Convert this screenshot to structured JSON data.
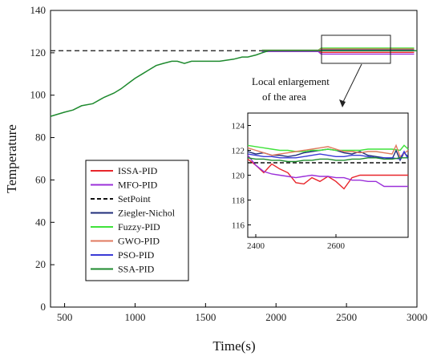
{
  "chart_data": {
    "type": "line",
    "xlabel": "Time(s)",
    "ylabel": "Temperature",
    "xlim": [
      400,
      3000
    ],
    "ylim": [
      0,
      140
    ],
    "x_ticks": [
      "500",
      "1000",
      "1500",
      "2000",
      "2500",
      "3000"
    ],
    "y_ticks": [
      "0",
      "20",
      "40",
      "60",
      "80",
      "100",
      "120",
      "140"
    ],
    "grid": false,
    "legend_position": "left-middle",
    "annotation": [
      "Local enlargement",
      "of the area"
    ],
    "setpoint": 121,
    "main_curve": {
      "x": [
        400,
        450,
        500,
        560,
        620,
        700,
        780,
        850,
        900,
        960,
        1000,
        1050,
        1100,
        1150,
        1200,
        1260,
        1300,
        1350,
        1400,
        1500,
        1600,
        1700,
        1760,
        1800,
        1860,
        1900,
        1950,
        2000,
        2100,
        2200,
        2300,
        2400,
        2500,
        2600,
        2700,
        2800,
        2900,
        3000
      ],
      "y": [
        90,
        91,
        92,
        93,
        95,
        96,
        99,
        101,
        103,
        106,
        108,
        110,
        112,
        114,
        115,
        116,
        116,
        115,
        116,
        116,
        116,
        117,
        118,
        118,
        119,
        120,
        121,
        121,
        121,
        121,
        121,
        121,
        121,
        121,
        121,
        121,
        121,
        121
      ]
    },
    "series": [
      {
        "name": "ISSA-PID",
        "color": "#e8262b",
        "x": [
          2380,
          2400,
          2420,
          2440,
          2460,
          2480,
          2500,
          2520,
          2540,
          2560,
          2580,
          2600,
          2620,
          2640,
          2660,
          2680,
          2700,
          2720,
          2740,
          2760,
          2780
        ],
        "y": [
          121.3,
          120.8,
          120.2,
          120.9,
          120.5,
          120.2,
          119.4,
          119.3,
          119.8,
          119.5,
          119.9,
          119.5,
          118.9,
          119.8,
          120.0,
          120.0,
          120.0,
          120.0,
          120.0,
          120.0,
          120.0
        ]
      },
      {
        "name": "MFO-PID",
        "color": "#9b30d9",
        "x": [
          2380,
          2400,
          2420,
          2440,
          2460,
          2480,
          2500,
          2520,
          2540,
          2560,
          2580,
          2600,
          2620,
          2640,
          2660,
          2680,
          2700,
          2720,
          2740,
          2760,
          2780
        ],
        "y": [
          121.6,
          120.8,
          120.3,
          120.1,
          120.0,
          119.9,
          119.8,
          119.9,
          120.0,
          119.9,
          119.9,
          119.8,
          119.8,
          119.6,
          119.6,
          119.5,
          119.5,
          119.1,
          119.1,
          119.1,
          119.1
        ]
      },
      {
        "name": "SetPoint",
        "color": "#111111",
        "dashed": true,
        "x": [
          2380,
          2780
        ],
        "y": [
          121,
          121
        ]
      },
      {
        "name": "Ziegler-Nichol",
        "color": "#1f2d7a",
        "x": [
          2380,
          2400,
          2420,
          2440,
          2460,
          2480,
          2500,
          2520,
          2540,
          2560,
          2580,
          2600,
          2620,
          2640,
          2660,
          2680,
          2700,
          2720,
          2740,
          2750,
          2760,
          2770,
          2780
        ],
        "y": [
          121.9,
          121.7,
          121.8,
          121.6,
          121.6,
          121.5,
          121.6,
          121.8,
          121.9,
          122.0,
          122.1,
          122.0,
          121.8,
          121.7,
          121.9,
          121.6,
          121.5,
          121.4,
          121.3,
          122.0,
          121.2,
          121.8,
          121.5
        ]
      },
      {
        "name": "Fuzzy-PID",
        "color": "#3fe23a",
        "x": [
          2380,
          2400,
          2420,
          2440,
          2460,
          2480,
          2500,
          2520,
          2540,
          2560,
          2580,
          2600,
          2620,
          2640,
          2660,
          2680,
          2700,
          2720,
          2740,
          2760,
          2770,
          2780
        ],
        "y": [
          122.4,
          122.3,
          122.2,
          122.1,
          122.0,
          122.0,
          121.9,
          121.9,
          122.0,
          122.0,
          122.1,
          122.0,
          122.0,
          122.0,
          122.0,
          122.1,
          122.1,
          122.1,
          122.1,
          122.0,
          122.4,
          122.1
        ]
      },
      {
        "name": "GWO-PID",
        "color": "#e07a5f",
        "x": [
          2380,
          2400,
          2420,
          2440,
          2460,
          2480,
          2500,
          2520,
          2540,
          2560,
          2580,
          2600,
          2620,
          2640,
          2660,
          2680,
          2700,
          2720,
          2740,
          2750,
          2760,
          2780
        ],
        "y": [
          122.2,
          122.0,
          121.8,
          121.6,
          121.7,
          121.8,
          121.9,
          122.0,
          122.1,
          122.2,
          122.3,
          122.1,
          121.9,
          121.9,
          121.8,
          121.9,
          121.9,
          121.8,
          121.7,
          122.4,
          121.5,
          122.0
        ]
      },
      {
        "name": "PSO-PID",
        "color": "#3a3ad6",
        "x": [
          2380,
          2400,
          2420,
          2440,
          2460,
          2480,
          2500,
          2520,
          2540,
          2560,
          2580,
          2600,
          2620,
          2640,
          2660,
          2680,
          2700,
          2720,
          2740,
          2760,
          2770,
          2780
        ],
        "y": [
          121.7,
          121.6,
          121.5,
          121.5,
          121.4,
          121.4,
          121.4,
          121.5,
          121.6,
          121.7,
          121.6,
          121.5,
          121.5,
          121.6,
          121.6,
          121.5,
          121.4,
          121.4,
          121.4,
          121.3,
          121.9,
          121.3
        ]
      },
      {
        "name": "SSA-PID",
        "color": "#1e8a2e",
        "x": [
          2380,
          2400,
          2420,
          2440,
          2460,
          2480,
          2500,
          2520,
          2540,
          2560,
          2580,
          2600,
          2620,
          2640,
          2660,
          2680,
          2700,
          2720,
          2740,
          2760,
          2780
        ],
        "y": [
          121.4,
          121.3,
          121.3,
          121.2,
          121.2,
          121.1,
          121.1,
          121.2,
          121.2,
          121.3,
          121.3,
          121.2,
          121.2,
          121.3,
          121.3,
          121.4,
          121.4,
          121.3,
          121.3,
          121.4,
          121.4
        ]
      }
    ],
    "inset": {
      "xlim": [
        2380,
        2780
      ],
      "ylim": [
        115,
        125
      ],
      "x_ticks": [
        "2400",
        "2600"
      ],
      "y_ticks": [
        "116",
        "118",
        "120",
        "122",
        "124"
      ]
    }
  }
}
